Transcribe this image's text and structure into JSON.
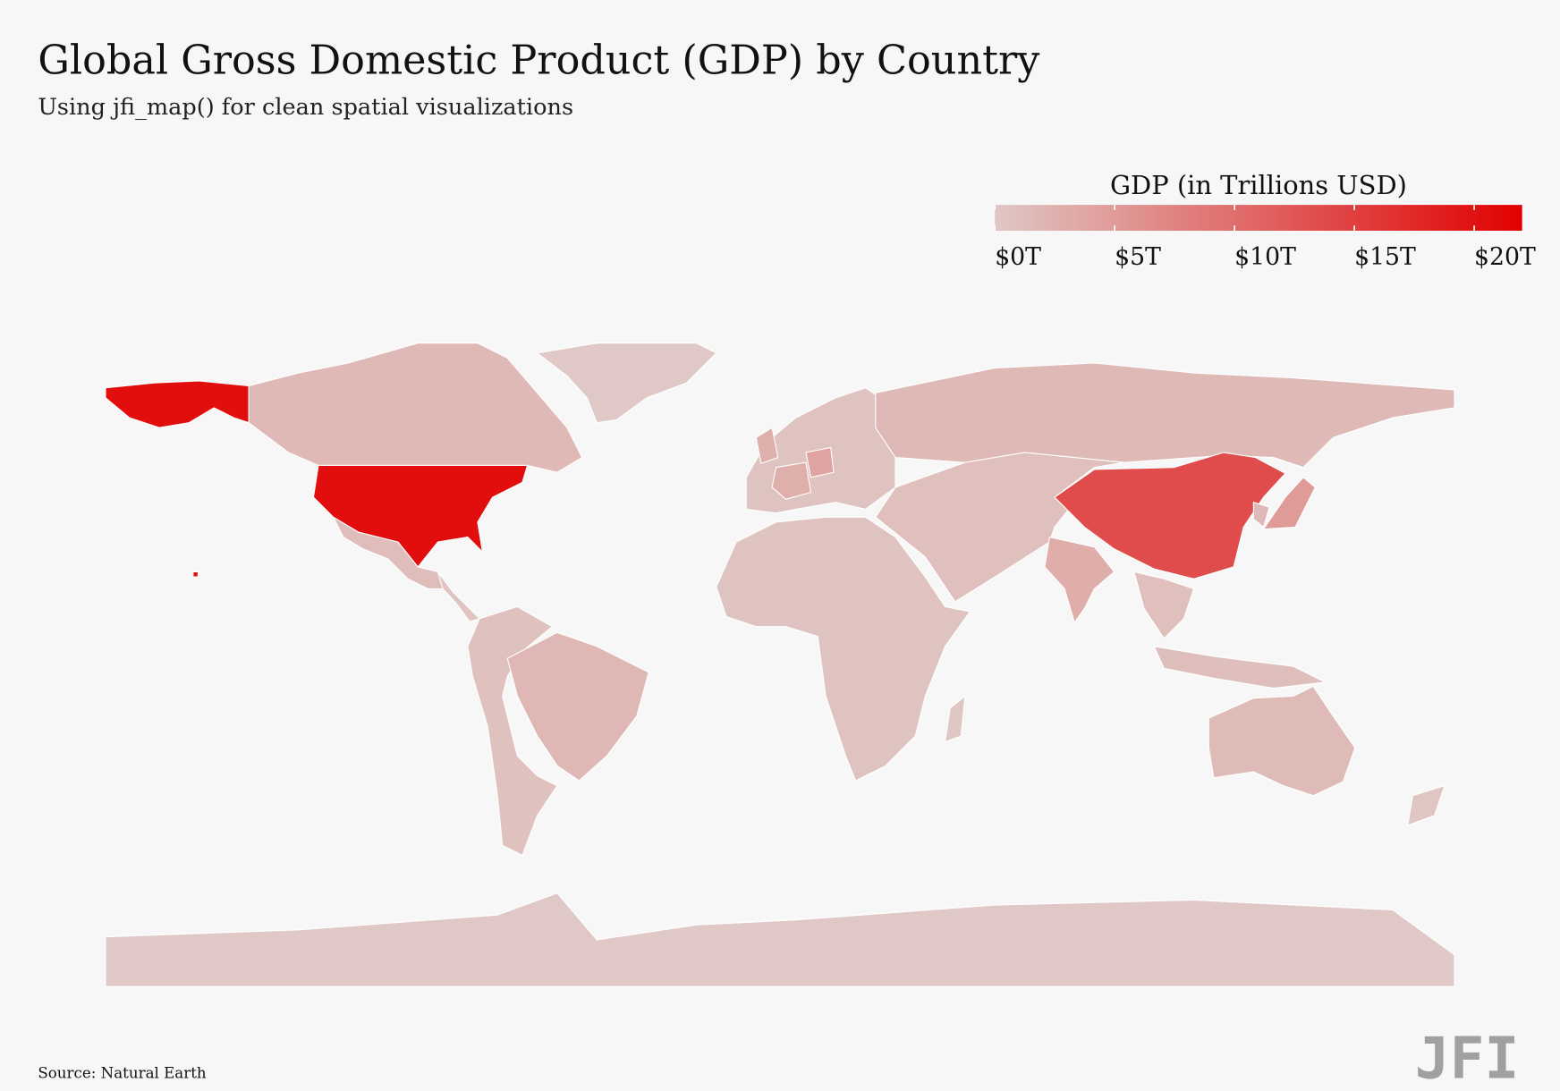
{
  "chart_data": {
    "type": "choropleth",
    "title": "Global Gross Domestic Product (GDP) by Country",
    "subtitle": "Using jfi_map() for clean spatial visualizations",
    "legend_title": "GDP (in Trillions USD)",
    "colors": [
      "#dfc8c5",
      "#e10000"
    ],
    "lim": [
      0,
      22
    ],
    "ticks": [
      {
        "value": 0,
        "label": "$0T"
      },
      {
        "value": 5,
        "label": "$5T"
      },
      {
        "value": 10,
        "label": "$10T"
      },
      {
        "value": 15,
        "label": "$15T"
      },
      {
        "value": 20,
        "label": "$20T"
      }
    ],
    "values": [
      20.5,
      1.7,
      0.0,
      1.2,
      0.3,
      0.8,
      1.9,
      0.6,
      2.8,
      2.8,
      4.0,
      1.7,
      0.9,
      13.6,
      2.9,
      0.9,
      5.0,
      1.6,
      1.0,
      0.6,
      0.1,
      1.4,
      0.2,
      0.0
    ],
    "source": "Source: Natural Earth",
    "logo": "JFI"
  }
}
